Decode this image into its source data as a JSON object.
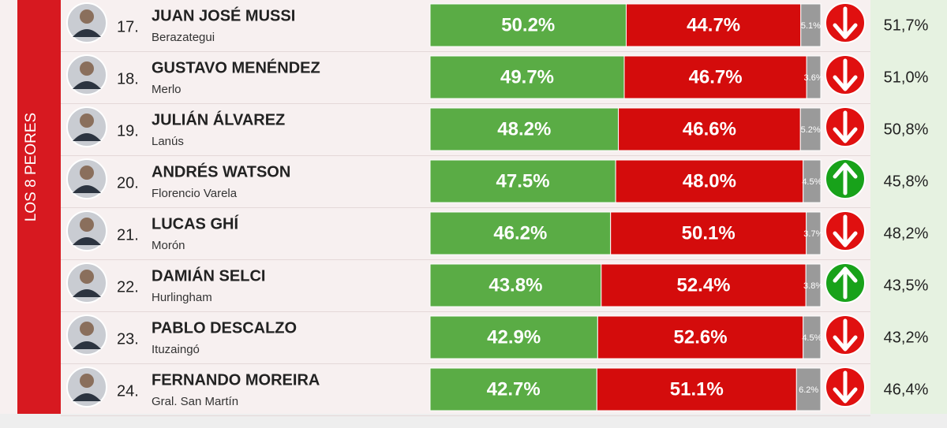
{
  "side_label": "LOS 8 PEORES",
  "rows": [
    {
      "rank": "17.",
      "name": "JUAN JOSÉ MUSSI",
      "district": "Berazategui",
      "approve": {
        "value": 50.2,
        "label": "50.2%"
      },
      "disapprove": {
        "value": 44.7,
        "label": "44.7%"
      },
      "nsnc": {
        "value": 5.1,
        "label": "5.1%"
      },
      "trend": "down",
      "previous": "51,7%"
    },
    {
      "rank": "18.",
      "name": "GUSTAVO MENÉNDEZ",
      "district": "Merlo",
      "approve": {
        "value": 49.7,
        "label": "49.7%"
      },
      "disapprove": {
        "value": 46.7,
        "label": "46.7%"
      },
      "nsnc": {
        "value": 3.6,
        "label": "3.6%"
      },
      "trend": "down",
      "previous": "51,0%"
    },
    {
      "rank": "19.",
      "name": "JULIÁN ÁLVAREZ",
      "district": "Lanús",
      "approve": {
        "value": 48.2,
        "label": "48.2%"
      },
      "disapprove": {
        "value": 46.6,
        "label": "46.6%"
      },
      "nsnc": {
        "value": 5.2,
        "label": "5.2%"
      },
      "trend": "down",
      "previous": "50,8%"
    },
    {
      "rank": "20.",
      "name": "ANDRÉS WATSON",
      "district": "Florencio Varela",
      "approve": {
        "value": 47.5,
        "label": "47.5%"
      },
      "disapprove": {
        "value": 48.0,
        "label": "48.0%"
      },
      "nsnc": {
        "value": 4.5,
        "label": "4.5%"
      },
      "trend": "up",
      "previous": "45,8%"
    },
    {
      "rank": "21.",
      "name": "LUCAS GHÍ",
      "district": "Morón",
      "approve": {
        "value": 46.2,
        "label": "46.2%"
      },
      "disapprove": {
        "value": 50.1,
        "label": "50.1%"
      },
      "nsnc": {
        "value": 3.7,
        "label": "3.7%"
      },
      "trend": "down",
      "previous": "48,2%"
    },
    {
      "rank": "22.",
      "name": "DAMIÁN SELCI",
      "district": "Hurlingham",
      "approve": {
        "value": 43.8,
        "label": "43.8%"
      },
      "disapprove": {
        "value": 52.4,
        "label": "52.4%"
      },
      "nsnc": {
        "value": 3.8,
        "label": "3.8%"
      },
      "trend": "up",
      "previous": "43,5%"
    },
    {
      "rank": "23.",
      "name": "PABLO DESCALZO",
      "district": "Ituzaingó",
      "approve": {
        "value": 42.9,
        "label": "42.9%"
      },
      "disapprove": {
        "value": 52.6,
        "label": "52.6%"
      },
      "nsnc": {
        "value": 4.5,
        "label": "4.5%"
      },
      "trend": "down",
      "previous": "43,2%"
    },
    {
      "rank": "24.",
      "name": "FERNANDO MOREIRA",
      "district": "Gral. San Martín",
      "approve": {
        "value": 42.7,
        "label": "42.7%"
      },
      "disapprove": {
        "value": 51.1,
        "label": "51.1%"
      },
      "nsnc": {
        "value": 6.2,
        "label": "6.2%"
      },
      "trend": "down",
      "previous": "46,4%"
    }
  ]
}
